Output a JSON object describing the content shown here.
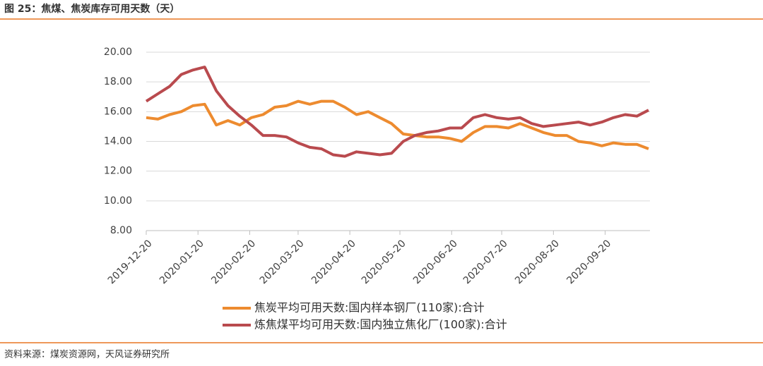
{
  "chart_data": {
    "type": "line",
    "title": "图 25：焦煤、焦炭库存可用天数（天）",
    "source": "资料来源：煤炭资源网，天风证券研究所",
    "x": [
      "2019-12-20",
      "2019-12-27",
      "2020-01-03",
      "2020-01-10",
      "2020-01-17",
      "2020-01-24",
      "2020-01-31",
      "2020-02-07",
      "2020-02-14",
      "2020-02-21",
      "2020-02-28",
      "2020-03-06",
      "2020-03-13",
      "2020-03-20",
      "2020-03-27",
      "2020-04-03",
      "2020-04-10",
      "2020-04-17",
      "2020-04-24",
      "2020-05-01",
      "2020-05-08",
      "2020-05-15",
      "2020-05-22",
      "2020-05-29",
      "2020-06-05",
      "2020-06-12",
      "2020-06-19",
      "2020-06-26",
      "2020-07-03",
      "2020-07-10",
      "2020-07-17",
      "2020-07-24",
      "2020-07-31",
      "2020-08-07",
      "2020-08-14",
      "2020-08-21",
      "2020-08-28",
      "2020-09-04",
      "2020-09-11",
      "2020-09-18",
      "2020-09-25",
      "2020-10-02",
      "2020-10-09",
      "2020-10-16"
    ],
    "series": [
      {
        "name": "焦炭平均可用天数:国内样本钢厂(110家):合计",
        "color": "#ED8B2F",
        "values": [
          15.6,
          15.5,
          15.8,
          16.0,
          16.4,
          16.5,
          15.1,
          15.4,
          15.1,
          15.6,
          15.8,
          16.3,
          16.4,
          16.7,
          16.5,
          16.7,
          16.7,
          16.3,
          15.8,
          16.0,
          15.6,
          15.2,
          14.5,
          14.4,
          14.3,
          14.3,
          14.2,
          14.0,
          14.6,
          15.0,
          15.0,
          14.9,
          15.2,
          14.9,
          14.6,
          14.4,
          14.4,
          14.0,
          13.9,
          13.7,
          13.9,
          13.8,
          13.8,
          13.5
        ]
      },
      {
        "name": "炼焦煤平均可用天数:国内独立焦化厂(100家):合计",
        "color": "#B94A4E",
        "values": [
          16.7,
          17.2,
          17.7,
          18.5,
          18.8,
          19.0,
          17.4,
          16.4,
          15.7,
          15.1,
          14.4,
          14.4,
          14.3,
          13.9,
          13.6,
          13.5,
          13.1,
          13.0,
          13.3,
          13.2,
          13.1,
          13.2,
          14.0,
          14.4,
          14.6,
          14.7,
          14.9,
          14.9,
          15.6,
          15.8,
          15.6,
          15.5,
          15.6,
          15.2,
          15.0,
          15.1,
          15.2,
          15.3,
          15.1,
          15.3,
          15.6,
          15.8,
          15.7,
          16.1
        ]
      }
    ],
    "xlim": [
      "2019-12-20",
      "2020-10-16"
    ],
    "xticks": [
      "2019-12-20",
      "2020-01-20",
      "2020-02-20",
      "2020-03-20",
      "2020-04-20",
      "2020-05-20",
      "2020-06-20",
      "2020-07-20",
      "2020-08-20",
      "2020-09-20"
    ],
    "ylim": [
      8,
      20
    ],
    "yticks": [
      {
        "value": 8,
        "label": "8.00"
      },
      {
        "value": 10,
        "label": "10.00"
      },
      {
        "value": 12,
        "label": "12.00"
      },
      {
        "value": 14,
        "label": "14.00"
      },
      {
        "value": 16,
        "label": "16.00"
      },
      {
        "value": 18,
        "label": "18.00"
      },
      {
        "value": 20,
        "label": "20.00"
      }
    ],
    "grid": true,
    "legend": "bottom"
  }
}
